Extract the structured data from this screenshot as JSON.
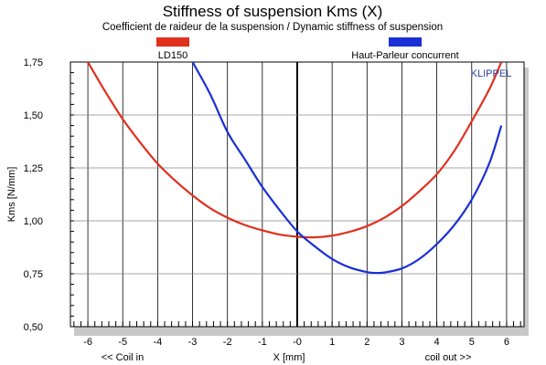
{
  "chart_data": {
    "type": "line",
    "title": "Stiffness of suspension Kms (X)",
    "subtitle": "Coefficient de raideur de la suspension / Dynamic stiffness of suspension",
    "xlabel": "X [mm]",
    "ylabel": "Kms [N/mm]",
    "x_annotation_left": "<< Coil in",
    "x_annotation_right": "coil out >>",
    "brand": "KLIPPEL",
    "xlim": [
      -6.5,
      6.5
    ],
    "ylim": [
      0.5,
      1.75
    ],
    "x_ticks": [
      -6,
      -5,
      -4,
      -3,
      -2,
      -1,
      0,
      1,
      2,
      3,
      4,
      5,
      6
    ],
    "x_tick_labels": [
      "-6",
      "-5",
      "-4",
      "-3",
      "-2",
      "-1",
      "-0",
      "1",
      "2",
      "3",
      "4",
      "5",
      "6"
    ],
    "y_ticks": [
      0.5,
      0.75,
      1.0,
      1.25,
      1.5,
      1.75
    ],
    "y_tick_labels": [
      "0,50",
      "0,75",
      "1,00",
      "1,25",
      "1,50",
      "1,75"
    ],
    "grid": true,
    "legend_position": "top",
    "series": [
      {
        "name": "LD150",
        "color": "#e0301e",
        "x": [
          -6.0,
          -5.5,
          -5.0,
          -4.5,
          -4.0,
          -3.5,
          -3.0,
          -2.5,
          -2.0,
          -1.5,
          -1.0,
          -0.5,
          0.0,
          0.5,
          1.0,
          1.5,
          2.0,
          2.5,
          3.0,
          3.5,
          4.0,
          4.5,
          5.0,
          5.5,
          5.85
        ],
        "y": [
          1.75,
          1.61,
          1.48,
          1.37,
          1.27,
          1.19,
          1.12,
          1.06,
          1.015,
          0.98,
          0.955,
          0.935,
          0.925,
          0.922,
          0.93,
          0.948,
          0.975,
          1.015,
          1.07,
          1.14,
          1.22,
          1.33,
          1.47,
          1.62,
          1.75
        ]
      },
      {
        "name": "Haut-Parleur concurrent",
        "color": "#1a2fd6",
        "x": [
          -3.0,
          -2.5,
          -2.0,
          -1.5,
          -1.0,
          -0.5,
          0.0,
          0.5,
          1.0,
          1.5,
          2.0,
          2.25,
          2.5,
          3.0,
          3.5,
          4.0,
          4.5,
          5.0,
          5.5,
          5.85
        ],
        "y": [
          1.75,
          1.6,
          1.42,
          1.29,
          1.16,
          1.05,
          0.95,
          0.88,
          0.82,
          0.78,
          0.758,
          0.754,
          0.756,
          0.775,
          0.82,
          0.89,
          0.98,
          1.1,
          1.27,
          1.45
        ]
      }
    ]
  }
}
